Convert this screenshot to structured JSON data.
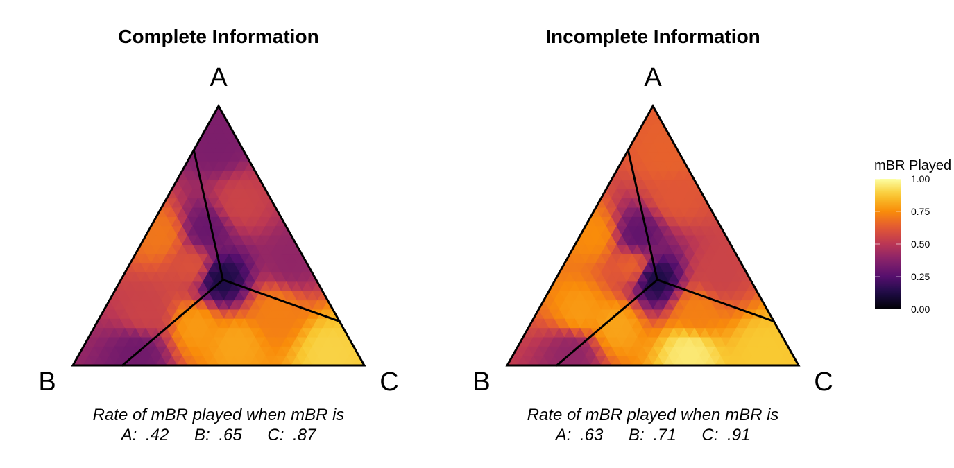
{
  "chart_data": [
    {
      "type": "heatmap",
      "title": "Complete Information",
      "vertices": [
        "A",
        "B",
        "C"
      ],
      "caption_line1": "Rate of mBR played when mBR is",
      "caption_values": [
        {
          "label": "A:",
          "value": ".42"
        },
        {
          "label": "B:",
          "value": ".65"
        },
        {
          "label": "C:",
          "value": ".87"
        }
      ],
      "regions": [
        {
          "name": "A",
          "rate": 0.42
        },
        {
          "name": "B",
          "rate": 0.65
        },
        {
          "name": "C",
          "rate": 0.87
        }
      ],
      "field_points": [
        {
          "a": 0.33,
          "b": 0.33,
          "c": 0.34,
          "value": 0.12
        },
        {
          "a": 0.52,
          "b": 0.28,
          "c": 0.2,
          "value": 0.3
        },
        {
          "a": 0.62,
          "b": 0.12,
          "c": 0.26,
          "value": 0.55
        },
        {
          "a": 0.85,
          "b": 0.08,
          "c": 0.07,
          "value": 0.35
        },
        {
          "a": 0.4,
          "b": 0.05,
          "c": 0.55,
          "value": 0.4
        },
        {
          "a": 0.2,
          "b": 0.65,
          "c": 0.15,
          "value": 0.55
        },
        {
          "a": 0.5,
          "b": 0.45,
          "c": 0.05,
          "value": 0.7
        },
        {
          "a": 0.38,
          "b": 0.4,
          "c": 0.22,
          "value": 0.6
        },
        {
          "a": 0.05,
          "b": 0.75,
          "c": 0.2,
          "value": 0.32
        },
        {
          "a": 0.08,
          "b": 0.4,
          "c": 0.52,
          "value": 0.8
        },
        {
          "a": 0.05,
          "b": 0.1,
          "c": 0.85,
          "value": 0.9
        },
        {
          "a": 0.2,
          "b": 0.2,
          "c": 0.6,
          "value": 0.72
        },
        {
          "a": 0.15,
          "b": 0.5,
          "c": 0.35,
          "value": 0.78
        }
      ]
    },
    {
      "type": "heatmap",
      "title": "Incomplete Information",
      "vertices": [
        "A",
        "B",
        "C"
      ],
      "caption_line1": "Rate of mBR played when mBR is",
      "caption_values": [
        {
          "label": "A:",
          "value": ".63"
        },
        {
          "label": "B:",
          "value": ".71"
        },
        {
          "label": "C:",
          "value": ".91"
        }
      ],
      "regions": [
        {
          "name": "A",
          "rate": 0.63
        },
        {
          "name": "B",
          "rate": 0.71
        },
        {
          "name": "C",
          "rate": 0.91
        }
      ],
      "field_points": [
        {
          "a": 0.33,
          "b": 0.33,
          "c": 0.34,
          "value": 0.12
        },
        {
          "a": 0.5,
          "b": 0.3,
          "c": 0.2,
          "value": 0.28
        },
        {
          "a": 0.65,
          "b": 0.1,
          "c": 0.25,
          "value": 0.62
        },
        {
          "a": 0.8,
          "b": 0.05,
          "c": 0.15,
          "value": 0.65
        },
        {
          "a": 0.35,
          "b": 0.1,
          "c": 0.55,
          "value": 0.55
        },
        {
          "a": 0.2,
          "b": 0.65,
          "c": 0.15,
          "value": 0.78
        },
        {
          "a": 0.5,
          "b": 0.45,
          "c": 0.05,
          "value": 0.75
        },
        {
          "a": 0.38,
          "b": 0.38,
          "c": 0.24,
          "value": 0.65
        },
        {
          "a": 0.05,
          "b": 0.75,
          "c": 0.2,
          "value": 0.4
        },
        {
          "a": 0.05,
          "b": 0.35,
          "c": 0.6,
          "value": 0.95
        },
        {
          "a": 0.05,
          "b": 0.1,
          "c": 0.85,
          "value": 0.88
        },
        {
          "a": 0.2,
          "b": 0.25,
          "c": 0.55,
          "value": 0.72
        },
        {
          "a": 0.15,
          "b": 0.55,
          "c": 0.3,
          "value": 0.8
        }
      ]
    }
  ],
  "legend": {
    "title": "mBR Played",
    "ticks": [
      "1.00",
      "0.75",
      "0.50",
      "0.25",
      "0.00"
    ],
    "tick_values": [
      1.0,
      0.75,
      0.5,
      0.25,
      0.0
    ],
    "colormap": "inferno",
    "range": [
      0,
      1
    ]
  }
}
